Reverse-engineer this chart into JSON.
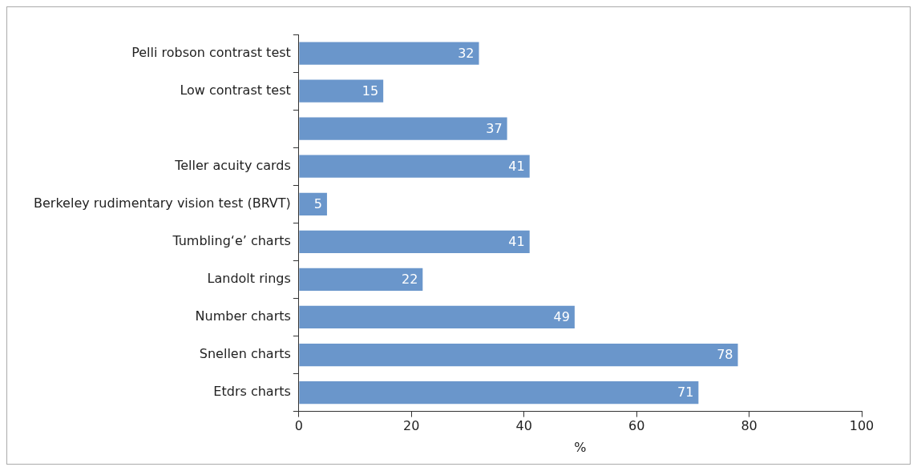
{
  "chart_data": {
    "type": "bar",
    "orientation": "horizontal",
    "categories": [
      "Pelli robson contrast test",
      "Low contrast test",
      null,
      "Teller acuity cards",
      "Berkeley rudimentary vision test (BRVT)",
      "Tumbling‘e’ charts",
      "Landolt rings",
      "Number charts",
      "Snellen charts",
      "Etdrs charts"
    ],
    "values": [
      32,
      15,
      37,
      41,
      5,
      41,
      22,
      49,
      78,
      71
    ],
    "color": "#6a96cb",
    "xlabel": "%",
    "xlim": [
      0,
      100
    ],
    "xticks": [
      0,
      20,
      40,
      60,
      80,
      100
    ],
    "grid": false,
    "data_labels": true,
    "legend": false
  }
}
